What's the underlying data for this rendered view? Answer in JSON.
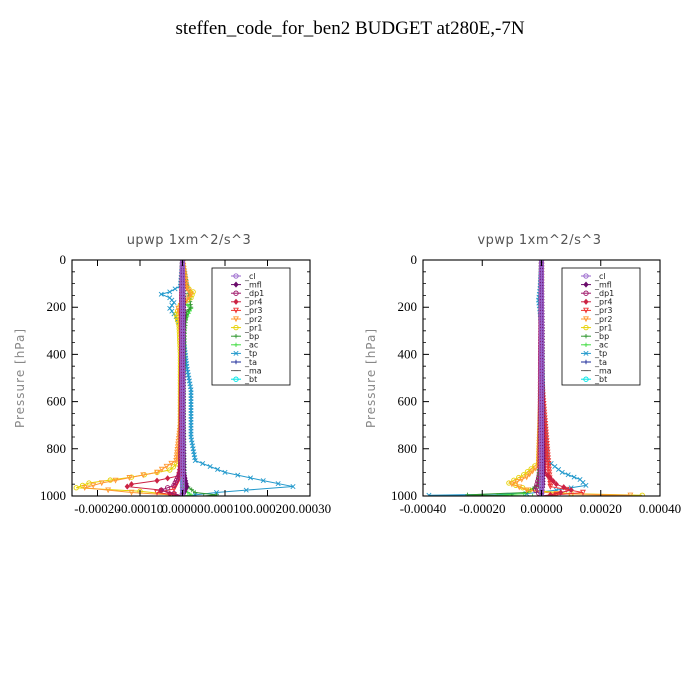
{
  "figure": {
    "title": "steffen_code_for_ben2  BUDGET at280E,-7N"
  },
  "chart_data": [
    {
      "type": "line",
      "title": "upwp   1xm^2/s^3",
      "ylabel": "Pressure [hPa]",
      "xlabel": "",
      "ylim": [
        0,
        1000
      ],
      "y_inverted": true,
      "xlim": [
        -0.00026,
        0.0003
      ],
      "xticks": [
        -0.0002,
        -0.0001,
        0.0,
        0.0001,
        0.0002,
        0.0003
      ],
      "xtick_labels": [
        "-0.00020",
        "-0.00010",
        "0.00000",
        "0.00010",
        "0.00020",
        "0.00030"
      ],
      "yticks": [
        0,
        200,
        400,
        600,
        800,
        1000
      ],
      "ytick_labels": [
        "0",
        "200",
        "400",
        "600",
        "800",
        "1000"
      ],
      "legend_placement": "top-right",
      "grid": false,
      "series": [
        {
          "name": "_cl",
          "color": "#9966cc",
          "marker": "circle",
          "points": [
            [
              0,
              0
            ],
            [
              0,
              150
            ],
            [
              0,
              500
            ],
            [
              0,
              900
            ],
            [
              0,
              1000
            ]
          ]
        },
        {
          "name": "_mfl",
          "color": "#6a0a6a",
          "marker": "diamond",
          "points": [
            [
              0,
              0
            ],
            [
              3e-06,
              200
            ],
            [
              2e-06,
              400
            ],
            [
              2e-06,
              700
            ],
            [
              3e-06,
              900
            ],
            [
              1e-05,
              960
            ],
            [
              5e-06,
              980
            ],
            [
              0,
              1000
            ]
          ]
        },
        {
          "name": "_dp1",
          "color": "#a0186a",
          "marker": "circle",
          "points": [
            [
              0,
              0
            ],
            [
              -2e-06,
              150
            ],
            [
              -2e-06,
              400
            ],
            [
              -3e-06,
              700
            ],
            [
              -5e-06,
              900
            ],
            [
              -2e-05,
              955
            ],
            [
              -5e-05,
              975
            ],
            [
              -2e-05,
              990
            ],
            [
              0,
              1000
            ]
          ]
        },
        {
          "name": "_pr4",
          "color": "#cc2244",
          "marker": "diamond",
          "points": [
            [
              0,
              0
            ],
            [
              0,
              300
            ],
            [
              -3e-06,
              850
            ],
            [
              -1e-05,
              915
            ],
            [
              -6e-05,
              935
            ],
            [
              -0.00012,
              950
            ],
            [
              -0.00013,
              960
            ],
            [
              -5e-05,
              975
            ],
            [
              -3e-05,
              990
            ],
            [
              0,
              1000
            ]
          ]
        },
        {
          "name": "_pr3",
          "color": "#ee3333",
          "marker": "triangle",
          "points": [
            [
              0,
              0
            ],
            [
              0,
              300
            ],
            [
              0,
              900
            ],
            [
              -2e-05,
              970
            ],
            [
              -6e-05,
              985
            ],
            [
              -2e-05,
              995
            ],
            [
              0,
              1000
            ]
          ]
        },
        {
          "name": "_pr2",
          "color": "#ff9933",
          "marker": "triangle",
          "points": [
            [
              0,
              0
            ],
            [
              1e-05,
              120
            ],
            [
              2e-05,
              145
            ],
            [
              1e-05,
              170
            ],
            [
              -1e-05,
              205
            ],
            [
              -5e-06,
              240
            ],
            [
              -2e-06,
              400
            ],
            [
              -5e-06,
              700
            ],
            [
              -1.5e-05,
              850
            ],
            [
              -6e-05,
              900
            ],
            [
              -0.00019,
              945
            ],
            [
              -0.00023,
              965
            ],
            [
              -0.00012,
              985
            ],
            [
              -3e-05,
              995
            ],
            [
              0,
              1000
            ]
          ]
        },
        {
          "name": "_pr1",
          "color": "#e6d200",
          "marker": "circle",
          "points": [
            [
              0,
              0
            ],
            [
              5e-06,
              110
            ],
            [
              2.5e-05,
              135
            ],
            [
              2e-05,
              160
            ],
            [
              -5e-06,
              190
            ],
            [
              -1.5e-05,
              230
            ],
            [
              -8e-06,
              280
            ],
            [
              -5e-06,
              400
            ],
            [
              -5e-06,
              700
            ],
            [
              -5e-06,
              850
            ],
            [
              -3e-05,
              890
            ],
            [
              -0.00012,
              920
            ],
            [
              -0.00022,
              945
            ],
            [
              -0.00025,
              965
            ],
            [
              -0.0001,
              980
            ],
            [
              -2e-05,
              995
            ],
            [
              0,
              1000
            ]
          ]
        },
        {
          "name": "_bp",
          "color": "#339933",
          "marker": "plus",
          "points": [
            [
              0,
              0
            ],
            [
              2e-05,
              200
            ],
            [
              1e-05,
              220
            ],
            [
              5e-06,
              300
            ],
            [
              2e-06,
              500
            ],
            [
              2e-06,
              800
            ],
            [
              5e-06,
              950
            ],
            [
              3e-05,
              985
            ],
            [
              8e-05,
              995
            ],
            [
              5e-05,
              1000
            ]
          ]
        },
        {
          "name": "_ac",
          "color": "#44dd44",
          "marker": "plus",
          "points": [
            [
              0,
              0
            ],
            [
              5e-06,
              180
            ],
            [
              2e-05,
              205
            ],
            [
              5e-06,
              260
            ],
            [
              2e-06,
              500
            ],
            [
              2e-06,
              900
            ],
            [
              5e-06,
              975
            ],
            [
              2e-05,
              995
            ],
            [
              0,
              1000
            ]
          ]
        },
        {
          "name": "_tp",
          "color": "#2299cc",
          "marker": "cross",
          "points": [
            [
              0,
              0
            ],
            [
              -5e-06,
              110
            ],
            [
              -3e-05,
              135
            ],
            [
              -5e-05,
              145
            ],
            [
              -3e-05,
              160
            ],
            [
              -2e-05,
              180
            ],
            [
              -3e-05,
              205
            ],
            [
              -1.5e-05,
              240
            ],
            [
              0,
              300
            ],
            [
              1e-05,
              450
            ],
            [
              2e-05,
              550
            ],
            [
              2e-05,
              650
            ],
            [
              2e-05,
              750
            ],
            [
              3e-05,
              850
            ],
            [
              0.0001,
              900
            ],
            [
              0.00019,
              935
            ],
            [
              0.00026,
              960
            ],
            [
              0.00015,
              975
            ],
            [
              8e-05,
              985
            ],
            [
              3e-05,
              995
            ],
            [
              0,
              1000
            ]
          ]
        },
        {
          "name": "_ta",
          "color": "#1a2a99",
          "marker": "plus",
          "points": [
            [
              0,
              0
            ],
            [
              2e-06,
              300
            ],
            [
              3e-06,
              700
            ],
            [
              5e-06,
              950
            ],
            [
              0,
              1000
            ]
          ]
        },
        {
          "name": "_ma",
          "color": "#666666",
          "marker": "dash",
          "points": [
            [
              0,
              0
            ],
            [
              0,
              500
            ],
            [
              0,
              1000
            ]
          ]
        },
        {
          "name": "_bt",
          "color": "#00e5e5",
          "marker": "circle",
          "points": [
            [
              0,
              0
            ],
            [
              0,
              500
            ],
            [
              0,
              1000
            ]
          ]
        }
      ]
    },
    {
      "type": "line",
      "title": "vpwp   1xm^2/s^3",
      "ylabel": "Pressure [hPa]",
      "xlabel": "",
      "ylim": [
        0,
        1000
      ],
      "y_inverted": true,
      "xlim": [
        -0.0004,
        0.0004
      ],
      "xticks": [
        -0.0004,
        -0.0002,
        0.0,
        0.0002,
        0.0004
      ],
      "xtick_labels": [
        "-0.00040",
        "-0.00020",
        "0.00000",
        "0.00020",
        "0.00040"
      ],
      "yticks": [
        0,
        200,
        400,
        600,
        800,
        1000
      ],
      "ytick_labels": [
        "0",
        "200",
        "400",
        "600",
        "800",
        "1000"
      ],
      "legend_placement": "top-right",
      "grid": false,
      "series": [
        {
          "name": "_cl",
          "color": "#9966cc",
          "marker": "circle",
          "points": [
            [
              0,
              0
            ],
            [
              0,
              500
            ],
            [
              0,
              1000
            ]
          ]
        },
        {
          "name": "_mfl",
          "color": "#6a0a6a",
          "marker": "diamond",
          "points": [
            [
              0,
              0
            ],
            [
              3e-06,
              300
            ],
            [
              3e-06,
              700
            ],
            [
              5e-06,
              950
            ],
            [
              0,
              1000
            ]
          ]
        },
        {
          "name": "_dp1",
          "color": "#a0186a",
          "marker": "circle",
          "points": [
            [
              0,
              0
            ],
            [
              -3e-06,
              400
            ],
            [
              -5e-06,
              900
            ],
            [
              -2e-05,
              975
            ],
            [
              0,
              1000
            ]
          ]
        },
        {
          "name": "_pr4",
          "color": "#cc2244",
          "marker": "diamond",
          "points": [
            [
              0,
              0
            ],
            [
              0,
              500
            ],
            [
              1e-05,
              900
            ],
            [
              5e-05,
              950
            ],
            [
              0.0001,
              975
            ],
            [
              3e-05,
              995
            ],
            [
              0,
              1000
            ]
          ]
        },
        {
          "name": "_pr3",
          "color": "#ee3333",
          "marker": "triangle",
          "points": [
            [
              0,
              0
            ],
            [
              0,
              500
            ],
            [
              3e-05,
              960
            ],
            [
              0.00014,
              985
            ],
            [
              5e-05,
              995
            ],
            [
              0,
              1000
            ]
          ]
        },
        {
          "name": "_pr2",
          "color": "#ff9933",
          "marker": "triangle",
          "points": [
            [
              0,
              0
            ],
            [
              0,
              500
            ],
            [
              -1e-05,
              870
            ],
            [
              -5e-05,
              920
            ],
            [
              -0.0001,
              950
            ],
            [
              -5e-05,
              975
            ],
            [
              5e-05,
              990
            ],
            [
              0.0003,
              997
            ],
            [
              0.0001,
              1000
            ]
          ]
        },
        {
          "name": "_pr1",
          "color": "#e6d200",
          "marker": "circle",
          "points": [
            [
              0,
              0
            ],
            [
              0,
              500
            ],
            [
              -1e-05,
              860
            ],
            [
              -6e-05,
              910
            ],
            [
              -0.00011,
              945
            ],
            [
              -4e-05,
              975
            ],
            [
              0.0001,
              990
            ],
            [
              0.00034,
              997
            ],
            [
              0.0001,
              1000
            ]
          ]
        },
        {
          "name": "_bp",
          "color": "#339933",
          "marker": "plus",
          "points": [
            [
              0,
              0
            ],
            [
              0,
              500
            ],
            [
              -1e-05,
              950
            ],
            [
              -5e-05,
              985
            ],
            [
              -0.00025,
              995
            ],
            [
              -0.0001,
              1000
            ]
          ]
        },
        {
          "name": "_ac",
          "color": "#44dd44",
          "marker": "plus",
          "points": [
            [
              0,
              0
            ],
            [
              0,
              500
            ],
            [
              -1e-05,
              960
            ],
            [
              -6e-05,
              990
            ],
            [
              -0.00015,
              997
            ],
            [
              -3e-05,
              1000
            ]
          ]
        },
        {
          "name": "_tp",
          "color": "#2299cc",
          "marker": "cross",
          "points": [
            [
              0,
              0
            ],
            [
              -5e-06,
              120
            ],
            [
              -1e-05,
              170
            ],
            [
              -5e-06,
              220
            ],
            [
              0,
              300
            ],
            [
              5e-06,
              600
            ],
            [
              2e-05,
              850
            ],
            [
              7e-05,
              900
            ],
            [
              0.00013,
              930
            ],
            [
              0.00015,
              955
            ],
            [
              5e-05,
              975
            ],
            [
              -5e-05,
              990
            ],
            [
              -0.00038,
              997
            ],
            [
              -0.0001,
              1000
            ]
          ]
        },
        {
          "name": "_ta",
          "color": "#1a2a99",
          "marker": "plus",
          "points": [
            [
              0,
              0
            ],
            [
              2e-06,
              500
            ],
            [
              5e-06,
              950
            ],
            [
              0,
              1000
            ]
          ]
        },
        {
          "name": "_ma",
          "color": "#666666",
          "marker": "dash",
          "points": [
            [
              0,
              0
            ],
            [
              0,
              500
            ],
            [
              0,
              1000
            ]
          ]
        },
        {
          "name": "_bt",
          "color": "#00e5e5",
          "marker": "circle",
          "points": [
            [
              0,
              0
            ],
            [
              0,
              500
            ],
            [
              0,
              1000
            ]
          ]
        }
      ]
    }
  ]
}
